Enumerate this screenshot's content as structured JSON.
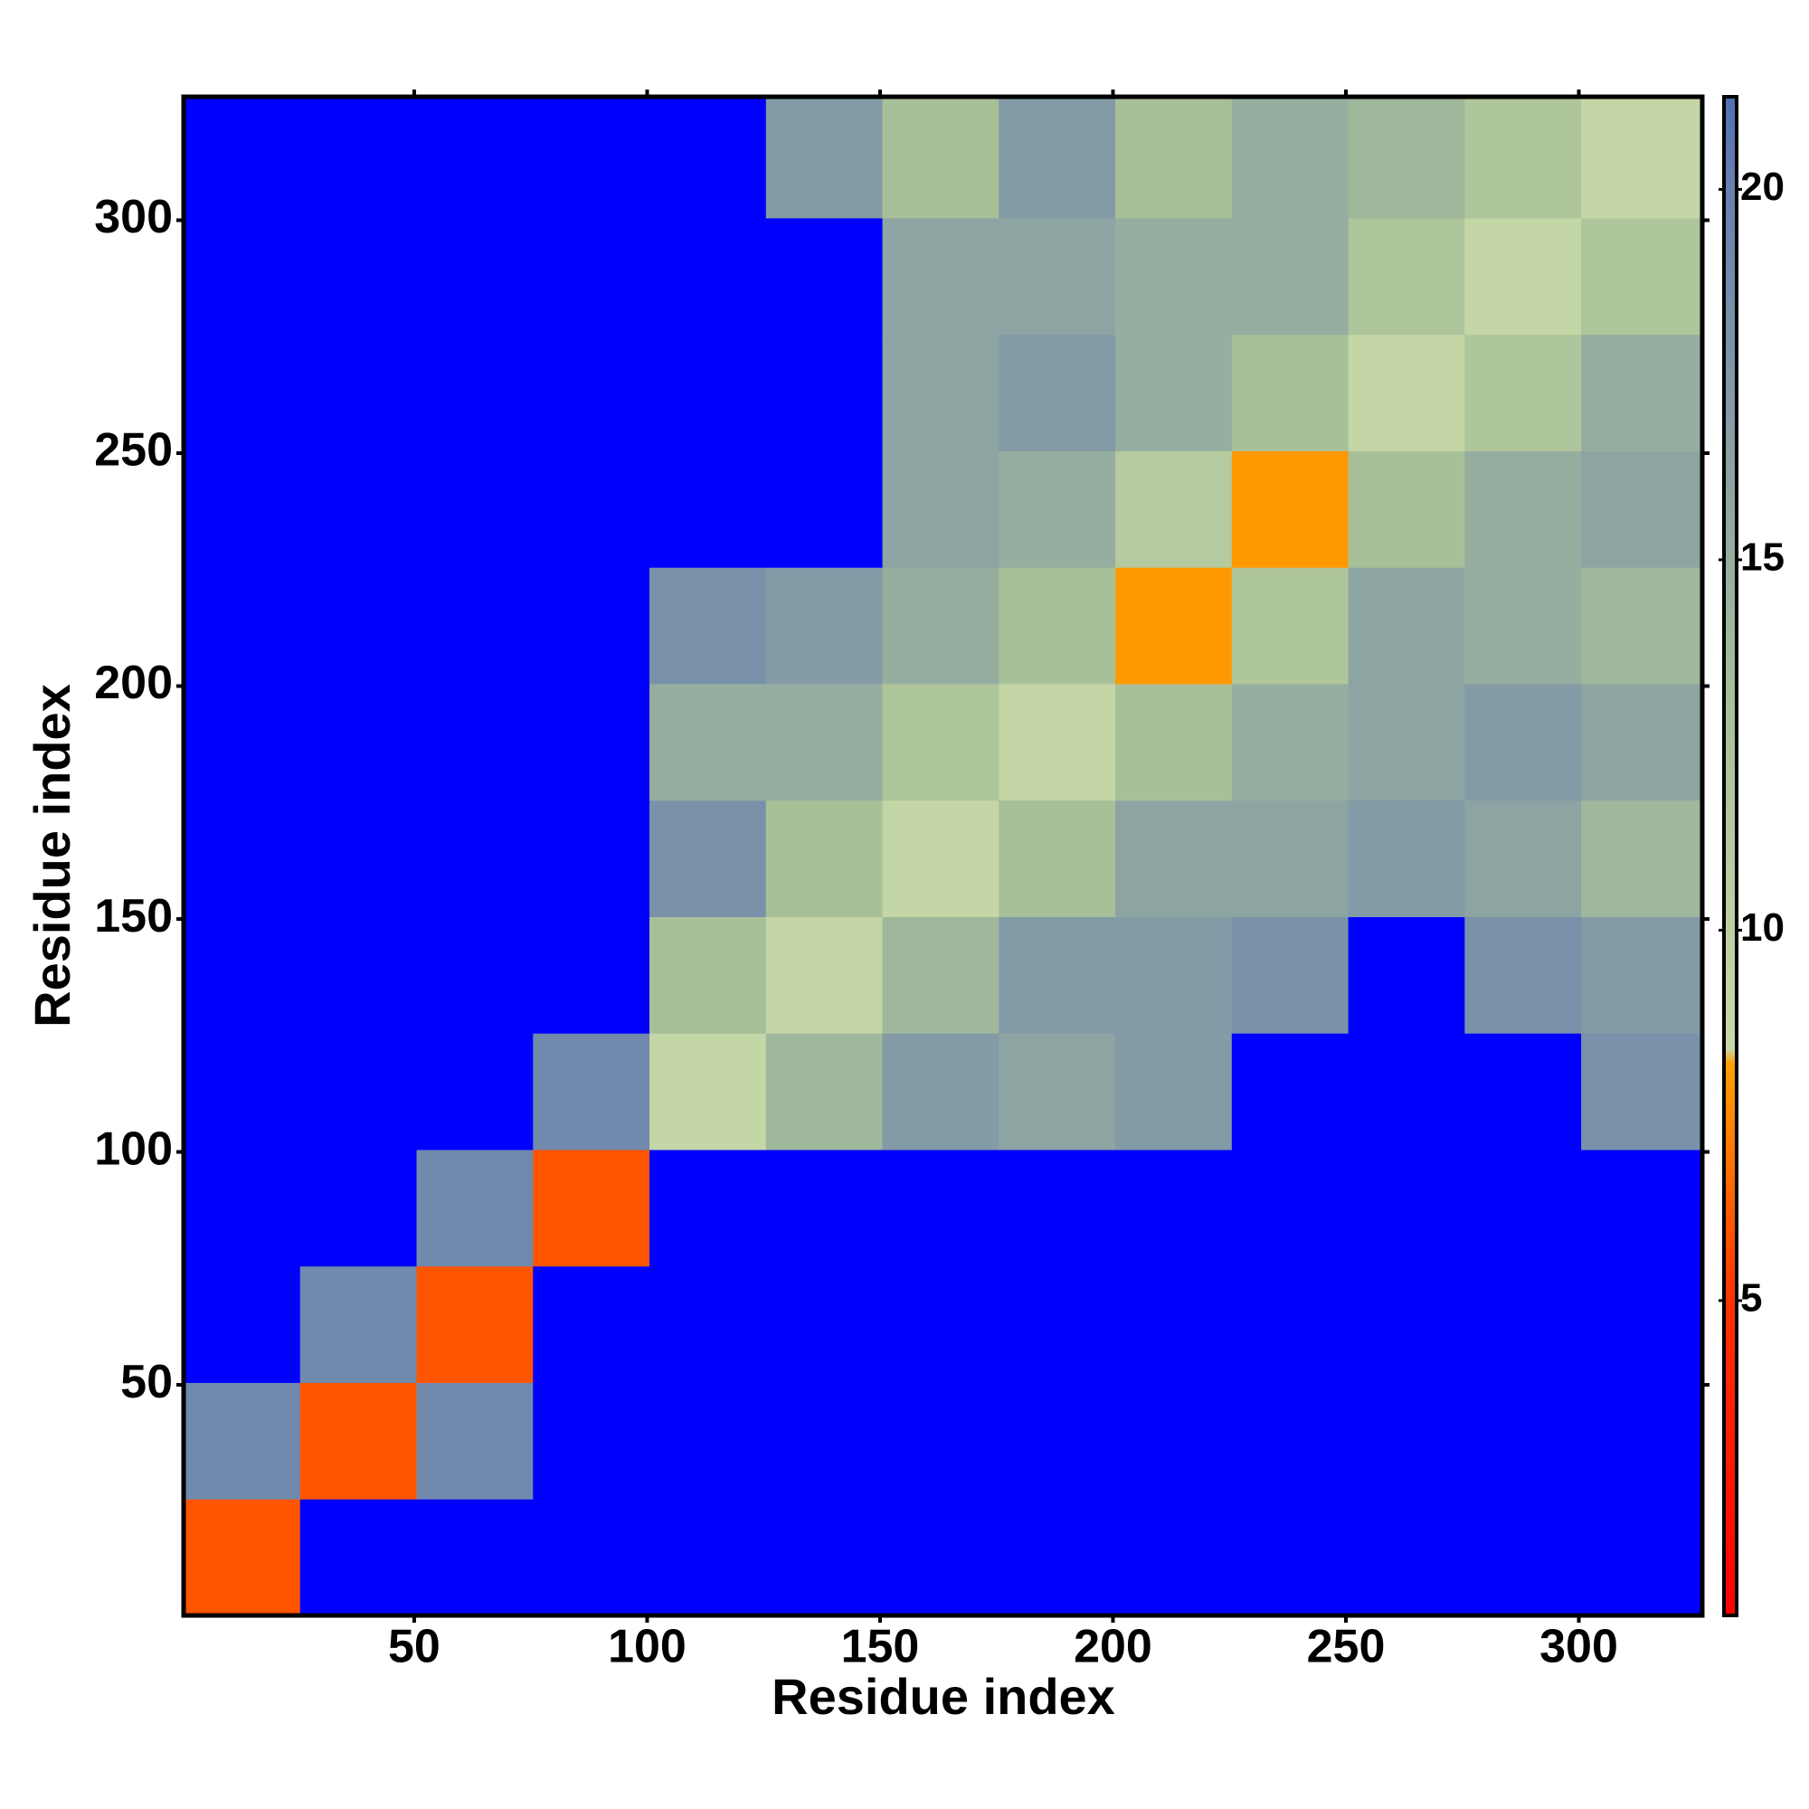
{
  "chart_data": {
    "type": "heatmap",
    "xlabel": "Residue index",
    "ylabel": "Residue index",
    "xbins": [
      0.5,
      25.5,
      50.5,
      75.5,
      100.5,
      125.5,
      150.5,
      175.5,
      200.5,
      225.5,
      250.5,
      275.5,
      300.5,
      326.5
    ],
    "ybins": [
      0.5,
      25.5,
      50.5,
      75.5,
      100.5,
      125.5,
      150.5,
      175.5,
      200.5,
      225.5,
      250.5,
      275.5,
      300.5,
      326.5
    ],
    "z": [
      [
        6,
        22,
        22,
        22,
        22,
        22,
        22,
        22,
        22,
        22,
        22,
        22,
        22
      ],
      [
        19,
        6,
        19,
        22,
        22,
        22,
        22,
        22,
        22,
        22,
        22,
        22,
        22
      ],
      [
        22,
        19,
        6,
        22,
        22,
        22,
        22,
        22,
        22,
        22,
        22,
        22,
        22
      ],
      [
        22,
        22,
        19,
        6,
        22,
        22,
        22,
        22,
        22,
        22,
        22,
        22,
        22
      ],
      [
        22,
        22,
        22,
        19,
        9,
        14,
        17,
        16,
        17,
        22,
        22,
        22,
        18
      ],
      [
        22,
        22,
        22,
        22,
        13,
        9,
        14,
        17,
        17,
        18,
        22,
        18,
        17
      ],
      [
        22,
        22,
        22,
        22,
        18,
        13,
        9,
        13,
        16,
        16,
        17,
        16,
        14
      ],
      [
        22,
        22,
        22,
        22,
        15,
        15,
        12,
        9,
        13,
        15,
        16,
        17,
        16
      ],
      [
        22,
        22,
        22,
        22,
        18,
        17,
        15,
        13,
        8,
        12,
        16,
        15,
        14
      ],
      [
        22,
        22,
        22,
        22,
        22,
        22,
        16,
        15,
        11,
        8,
        13,
        15,
        16
      ],
      [
        22,
        22,
        22,
        22,
        22,
        22,
        16,
        17,
        15,
        13,
        9,
        12,
        15
      ],
      [
        22,
        22,
        22,
        22,
        22,
        22,
        16,
        16,
        15,
        15,
        12,
        9,
        12
      ],
      [
        22,
        22,
        22,
        22,
        22,
        17,
        13,
        17,
        13,
        15,
        14,
        12,
        9
      ]
    ],
    "xlim": [
      0.5,
      326.5
    ],
    "ylim": [
      0.5,
      326.5
    ],
    "xticks": [
      50,
      100,
      150,
      200,
      250,
      300
    ],
    "yticks": [
      50,
      100,
      150,
      200,
      250,
      300
    ],
    "zlim": [
      0.75,
      21.25
    ],
    "zticks": [
      5,
      10,
      15,
      20
    ],
    "colorscale": [
      [
        0.75,
        "#ff0000"
      ],
      [
        5,
        "#ff3300"
      ],
      [
        8.2,
        "#ffa000"
      ],
      [
        8.4,
        "#c8d8a8"
      ],
      [
        13,
        "#a8c098"
      ],
      [
        20,
        "#6880b0"
      ],
      [
        21.25,
        "#5070b0"
      ]
    ],
    "over_color": "#0000ff"
  }
}
